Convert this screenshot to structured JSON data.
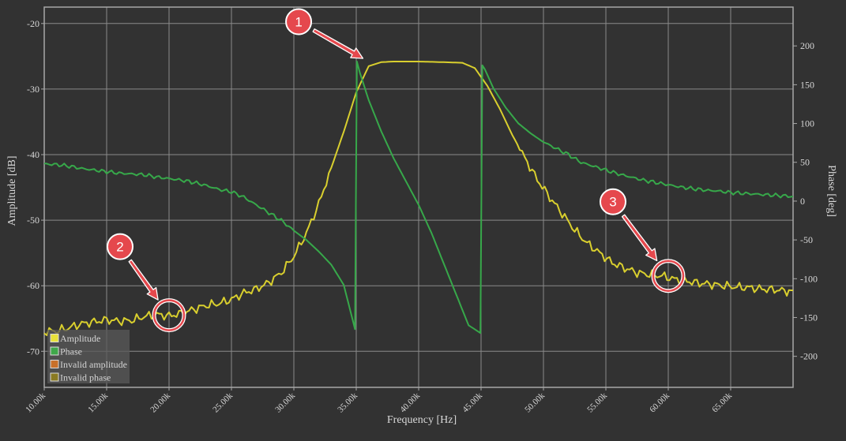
{
  "chart_data": {
    "type": "line",
    "xlabel": "Frequency   [Hz]",
    "ylabel_left": "Amplitude  [dB]",
    "ylabel_right": "Phase   [deg]",
    "xlim": [
      10000,
      70000
    ],
    "ylim_left": [
      -75.5,
      -17.5
    ],
    "ylim_right": [
      -240,
      250
    ],
    "grid": true,
    "x_ticks": [
      {
        "value": 10000,
        "label": "10.00k"
      },
      {
        "value": 15000,
        "label": "15.00k"
      },
      {
        "value": 20000,
        "label": "20.00k"
      },
      {
        "value": 25000,
        "label": "25.00k"
      },
      {
        "value": 30000,
        "label": "30.00k"
      },
      {
        "value": 35000,
        "label": "35.00k"
      },
      {
        "value": 40000,
        "label": "40.00k"
      },
      {
        "value": 45000,
        "label": "45.00k"
      },
      {
        "value": 50000,
        "label": "50.00k"
      },
      {
        "value": 55000,
        "label": "55.00k"
      },
      {
        "value": 60000,
        "label": "60.00k"
      },
      {
        "value": 65000,
        "label": "65.00k"
      }
    ],
    "y_left_ticks": [
      {
        "value": -20,
        "label": "-20"
      },
      {
        "value": -30,
        "label": "-30"
      },
      {
        "value": -40,
        "label": "-40"
      },
      {
        "value": -50,
        "label": "-50"
      },
      {
        "value": -60,
        "label": "-60"
      },
      {
        "value": -70,
        "label": "-70"
      }
    ],
    "y_right_ticks": [
      {
        "value": 200,
        "label": "200"
      },
      {
        "value": 150,
        "label": "150"
      },
      {
        "value": 100,
        "label": "100"
      },
      {
        "value": 50,
        "label": "50"
      },
      {
        "value": 0,
        "label": "0"
      },
      {
        "value": -50,
        "label": "-50"
      },
      {
        "value": -100,
        "label": "-100"
      },
      {
        "value": -150,
        "label": "-150"
      },
      {
        "value": -200,
        "label": "-200"
      }
    ],
    "series": [
      {
        "name": "Amplitude",
        "axis": "left",
        "color": "#d9cf2e",
        "x": [
          10000,
          11000,
          12000,
          13000,
          14000,
          15000,
          16000,
          17000,
          18000,
          19000,
          20000,
          21000,
          22000,
          23000,
          24000,
          25000,
          26000,
          27000,
          28000,
          29000,
          30000,
          31000,
          32000,
          33000,
          34000,
          35000,
          36000,
          37000,
          38000,
          40000,
          42000,
          43500,
          44500,
          45500,
          46500,
          47500,
          48500,
          49500,
          50500,
          51500,
          52500,
          53500,
          54500,
          55500,
          56500,
          57500,
          58500,
          59500,
          60500,
          61500,
          62500,
          63500,
          64500,
          65500,
          66500,
          67500,
          68500,
          69500,
          70000
        ],
        "values": [
          -67.0,
          -66.9,
          -66.4,
          -65.8,
          -65.5,
          -65.2,
          -65.4,
          -65.3,
          -64.7,
          -64.4,
          -64.6,
          -64.2,
          -63.6,
          -63.0,
          -62.7,
          -62.1,
          -61.1,
          -60.5,
          -59.5,
          -58.0,
          -55.5,
          -52.0,
          -47.5,
          -42.0,
          -36.5,
          -30.5,
          -26.5,
          -25.9,
          -25.8,
          -25.8,
          -25.9,
          -26.0,
          -26.8,
          -29.5,
          -33.0,
          -37.0,
          -40.5,
          -43.8,
          -46.5,
          -49.0,
          -51.5,
          -53.5,
          -55.0,
          -56.5,
          -57.3,
          -58.0,
          -58.3,
          -58.5,
          -59.0,
          -59.3,
          -59.6,
          -59.8,
          -60.0,
          -60.2,
          -60.3,
          -60.5,
          -60.6,
          -60.8,
          -60.7
        ]
      },
      {
        "name": "Phase",
        "axis": "right",
        "color": "#37a84a",
        "x": [
          10000,
          11000,
          12000,
          13000,
          14000,
          15000,
          16000,
          17000,
          18000,
          19000,
          20000,
          21000,
          22000,
          23000,
          24000,
          25000,
          26000,
          27000,
          28000,
          29000,
          30000,
          31000,
          32000,
          33000,
          34000,
          34900,
          35050,
          35300,
          36000,
          37000,
          38000,
          39000,
          40000,
          41000,
          42000,
          43000,
          44000,
          44950,
          45100,
          45300,
          46000,
          47000,
          48000,
          49000,
          50000,
          51000,
          52000,
          53000,
          54000,
          55000,
          56000,
          57000,
          58000,
          59000,
          60000,
          61000,
          62000,
          63000,
          64000,
          65000,
          66000,
          67000,
          68000,
          69000,
          70000
        ],
        "values": [
          48,
          47,
          45,
          42,
          40,
          38,
          36,
          35,
          34,
          31,
          29,
          27,
          24,
          20,
          15,
          12,
          5,
          -5,
          -15,
          -25,
          -38,
          -50,
          -65,
          -82,
          -108,
          -165,
          180,
          165,
          130,
          90,
          55,
          25,
          -5,
          -40,
          -80,
          -120,
          -160,
          -170,
          175,
          170,
          145,
          120,
          100,
          87,
          76,
          68,
          60,
          50,
          45,
          40,
          35,
          31,
          27,
          24,
          21,
          18,
          16,
          14,
          13,
          11,
          10,
          9,
          8,
          7,
          6
        ]
      }
    ],
    "legend": {
      "position": "bottom-left",
      "items": [
        {
          "label": "Amplitude",
          "color": "#e8e23a"
        },
        {
          "label": "Phase",
          "color": "#3fa84a"
        },
        {
          "label": "Invalid amplitude",
          "color": "#c8702a"
        },
        {
          "label": "Invalid phase",
          "color": "#8a7a22"
        }
      ]
    },
    "annotations": [
      {
        "label": "1",
        "x": 35700,
        "y": -25.5,
        "ring": false
      },
      {
        "label": "2",
        "x": 20000,
        "y": -64.5,
        "ring": true
      },
      {
        "label": "3",
        "x": 60000,
        "y": -58.5,
        "ring": true
      }
    ]
  },
  "colors": {
    "background": "#323232",
    "grid": "#8a8a8a",
    "frame": "#a8a8a8",
    "annotation": "#e5484d"
  }
}
